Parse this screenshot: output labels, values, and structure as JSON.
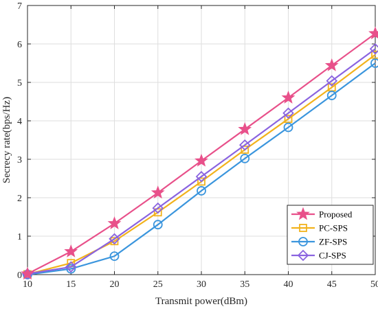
{
  "chart_data": {
    "type": "line",
    "xlabel": "Transmit power(dBm)",
    "ylabel": "Secrecy rate(bps/Hz)",
    "x": [
      10,
      15,
      20,
      25,
      30,
      35,
      40,
      45,
      50
    ],
    "xlim": [
      10,
      50
    ],
    "ylim": [
      0,
      7
    ],
    "xticks": [
      10,
      15,
      20,
      25,
      30,
      35,
      40,
      45,
      50
    ],
    "yticks": [
      0,
      1,
      2,
      3,
      4,
      5,
      6,
      7
    ],
    "grid": true,
    "legend_position": "bottom-right",
    "series": [
      {
        "name": "Proposed",
        "color": "#e8508a",
        "marker": "star",
        "values": [
          0.02,
          0.6,
          1.33,
          2.13,
          2.96,
          3.78,
          4.6,
          5.44,
          6.27
        ]
      },
      {
        "name": "PC-SPS",
        "color": "#f2b21c",
        "marker": "square",
        "values": [
          0.01,
          0.3,
          0.87,
          1.62,
          2.42,
          3.25,
          4.05,
          4.87,
          5.72
        ]
      },
      {
        "name": "ZF-SPS",
        "color": "#3a95dd",
        "marker": "circle",
        "values": [
          0.0,
          0.15,
          0.48,
          1.3,
          2.18,
          3.02,
          3.83,
          4.66,
          5.5
        ]
      },
      {
        "name": "CJ-SPS",
        "color": "#8a63e0",
        "marker": "diamond",
        "values": [
          0.02,
          0.2,
          0.93,
          1.73,
          2.55,
          3.37,
          4.2,
          5.04,
          5.87
        ]
      }
    ]
  }
}
